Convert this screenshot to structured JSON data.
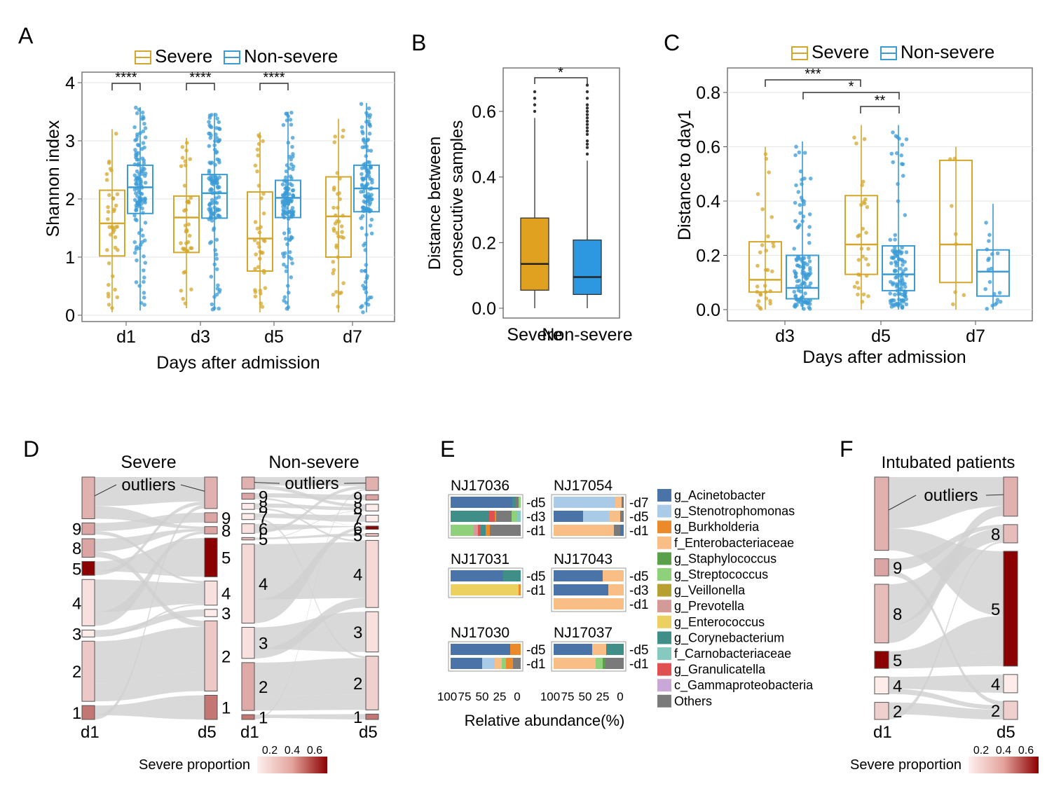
{
  "panels": {
    "A": "A",
    "B": "B",
    "C": "C",
    "D": "D",
    "E": "E",
    "F": "F"
  },
  "colors": {
    "severe": "#d4a72c",
    "nonsevere": "#3a9bd5",
    "severe_fill": "#e0a020",
    "nonsevere_fill": "#2d98e0",
    "grid": "#e6e6e6",
    "flow": "#d3d3d3",
    "scale_low": "#fdeeee",
    "scale_high": "#8b0000"
  },
  "chart_data": [
    {
      "id": "A",
      "type": "box",
      "legend": [
        "Severe",
        "Non-severe"
      ],
      "legend_position": "top",
      "xlabel": "Days after admission",
      "ylabel": "Shannon index",
      "categories": [
        "d1",
        "d3",
        "d5",
        "d7"
      ],
      "ylim": [
        0,
        4
      ],
      "yticks": [
        "0",
        "1",
        "2",
        "3",
        "4"
      ],
      "grid": true,
      "series": [
        {
          "name": "Severe",
          "color": "#d4a72c",
          "boxes": [
            {
              "q1": 1.02,
              "med": 1.58,
              "q3": 2.15,
              "lo": 0.05,
              "hi": 3.2
            },
            {
              "q1": 1.08,
              "med": 1.68,
              "q3": 2.05,
              "lo": 0.12,
              "hi": 3.05
            },
            {
              "q1": 0.76,
              "med": 1.32,
              "q3": 2.12,
              "lo": 0.05,
              "hi": 3.15
            },
            {
              "q1": 1.0,
              "med": 1.7,
              "q3": 2.38,
              "lo": 0.05,
              "hi": 3.38
            }
          ]
        },
        {
          "name": "Non-severe",
          "color": "#3a9bd5",
          "boxes": [
            {
              "q1": 1.75,
              "med": 2.2,
              "q3": 2.58,
              "lo": 0.08,
              "hi": 3.58
            },
            {
              "q1": 1.67,
              "med": 2.1,
              "q3": 2.42,
              "lo": 0.08,
              "hi": 3.48
            },
            {
              "q1": 1.68,
              "med": 2.02,
              "q3": 2.32,
              "lo": 0.08,
              "hi": 3.5
            },
            {
              "q1": 1.78,
              "med": 2.18,
              "q3": 2.58,
              "lo": 0.05,
              "hi": 3.65
            }
          ]
        }
      ],
      "significance": [
        {
          "pair": [
            0,
            0
          ],
          "label": "****"
        },
        {
          "pair": [
            1,
            1
          ],
          "label": "****"
        },
        {
          "pair": [
            2,
            2
          ],
          "label": "****"
        }
      ]
    },
    {
      "id": "B",
      "type": "box",
      "ylabel": "Distance between\nconsecutive samples",
      "categories": [
        "Severe",
        "Non-severe"
      ],
      "ylim": [
        0,
        0.7
      ],
      "yticks": [
        "0.0",
        "0.2",
        "0.4",
        "0.6"
      ],
      "grid": false,
      "boxes": [
        {
          "q1": 0.055,
          "med": 0.135,
          "q3": 0.275,
          "lo": 0.0,
          "hi": 0.58,
          "color": "#e0a020",
          "outliers": [
            0.6,
            0.62,
            0.64,
            0.66
          ]
        },
        {
          "q1": 0.042,
          "med": 0.095,
          "q3": 0.208,
          "lo": 0.0,
          "hi": 0.45,
          "color": "#2d98e0",
          "outliers": [
            0.47,
            0.49,
            0.5,
            0.51,
            0.53,
            0.54,
            0.55,
            0.56,
            0.57,
            0.58,
            0.59,
            0.6,
            0.61,
            0.62,
            0.64,
            0.66,
            0.68
          ]
        }
      ],
      "significance": [
        {
          "pair": [
            0,
            1
          ],
          "label": "*"
        }
      ]
    },
    {
      "id": "C",
      "type": "box",
      "legend": [
        "Severe",
        "Non-severe"
      ],
      "legend_position": "top",
      "xlabel": "Days after admission",
      "ylabel": "Distance to day1",
      "categories": [
        "d3",
        "d5",
        "d7"
      ],
      "ylim": [
        0,
        0.8
      ],
      "yticks": [
        "0.0",
        "0.2",
        "0.4",
        "0.6",
        "0.8"
      ],
      "grid": true,
      "series": [
        {
          "name": "Severe",
          "color": "#d4a72c",
          "boxes": [
            {
              "q1": 0.065,
              "med": 0.11,
              "q3": 0.25,
              "lo": 0.0,
              "hi": 0.6
            },
            {
              "q1": 0.13,
              "med": 0.24,
              "q3": 0.42,
              "lo": 0.0,
              "hi": 0.68
            },
            {
              "q1": 0.1,
              "med": 0.24,
              "q3": 0.55,
              "lo": 0.0,
              "hi": 0.6
            }
          ]
        },
        {
          "name": "Non-severe",
          "color": "#3a9bd5",
          "boxes": [
            {
              "q1": 0.04,
              "med": 0.08,
              "q3": 0.2,
              "lo": 0.0,
              "hi": 0.62
            },
            {
              "q1": 0.07,
              "med": 0.13,
              "q3": 0.235,
              "lo": 0.0,
              "hi": 0.68
            },
            {
              "q1": 0.05,
              "med": 0.14,
              "q3": 0.22,
              "lo": 0.0,
              "hi": 0.39
            }
          ]
        }
      ],
      "significance": [
        {
          "label": "***"
        },
        {
          "label": "*"
        },
        {
          "label": "**"
        }
      ]
    },
    {
      "id": "D",
      "type": "alluvial",
      "panels": [
        {
          "title": "Severe",
          "note": "outliers",
          "left": [
            {
              "label": "",
              "size": 0.18,
              "shade": 0.25
            },
            {
              "label": "9",
              "size": 0.05,
              "shade": 0.3
            },
            {
              "label": "8",
              "size": 0.08,
              "shade": 0.3
            },
            {
              "label": "5",
              "size": 0.06,
              "shade": 1.0
            },
            {
              "label": "4",
              "size": 0.2,
              "shade": 0.05
            },
            {
              "label": "3",
              "size": 0.03,
              "shade": 0.0
            },
            {
              "label": "2",
              "size": 0.26,
              "shade": 0.15
            },
            {
              "label": "1",
              "size": 0.06,
              "shade": 0.5
            }
          ],
          "right": [
            {
              "label": "",
              "size": 0.13,
              "shade": 0.25
            },
            {
              "label": "9",
              "size": 0.04,
              "shade": 0.3
            },
            {
              "label": "8",
              "size": 0.03,
              "shade": 0.3
            },
            {
              "label": "5",
              "size": 0.16,
              "shade": 1.0
            },
            {
              "label": "4",
              "size": 0.1,
              "shade": 0.05
            },
            {
              "label": "3",
              "size": 0.03,
              "shade": 0.0
            },
            {
              "label": "2",
              "size": 0.29,
              "shade": 0.15
            },
            {
              "label": "1",
              "size": 0.1,
              "shade": 0.5
            }
          ],
          "xlabels": [
            "d1",
            "d5"
          ]
        },
        {
          "title": "Non-severe",
          "note": "outliers",
          "left": [
            {
              "label": "",
              "size": 0.05,
              "shade": 0.25
            },
            {
              "label": "9",
              "size": 0.025,
              "shade": 0.3
            },
            {
              "label": "8",
              "size": 0.025,
              "shade": 0.0
            },
            {
              "label": "7",
              "size": 0.025,
              "shade": 0.0
            },
            {
              "label": "6",
              "size": 0.04,
              "shade": 0.05
            },
            {
              "label": "5",
              "size": 0.01,
              "shade": 0.2
            },
            {
              "label": "4",
              "size": 0.33,
              "shade": 0.08
            },
            {
              "label": "3",
              "size": 0.13,
              "shade": 0.05
            },
            {
              "label": "2",
              "size": 0.2,
              "shade": 0.28
            },
            {
              "label": "1",
              "size": 0.02,
              "shade": 0.5
            }
          ],
          "right": [
            {
              "label": "",
              "size": 0.05,
              "shade": 0.25
            },
            {
              "label": "9",
              "size": 0.02,
              "shade": 0.3
            },
            {
              "label": "8",
              "size": 0.025,
              "shade": 0.0
            },
            {
              "label": "7",
              "size": 0.025,
              "shade": 0.0
            },
            {
              "label": "6",
              "size": 0.012,
              "shade": 1.0
            },
            {
              "label": "5",
              "size": 0.01,
              "shade": 0.2
            },
            {
              "label": "4",
              "size": 0.25,
              "shade": 0.08
            },
            {
              "label": "3",
              "size": 0.15,
              "shade": 0.05
            },
            {
              "label": "2",
              "size": 0.2,
              "shade": 0.12
            },
            {
              "label": "1",
              "size": 0.02,
              "shade": 0.5
            }
          ],
          "xlabels": [
            "d1",
            "d5"
          ]
        }
      ],
      "scale_label": "Severe proportion",
      "scale_ticks": [
        "0.2",
        "0.4",
        "0.6"
      ]
    },
    {
      "id": "E",
      "type": "stacked_bar",
      "xlabel": "Relative abundance(%)",
      "xticks": [
        "100",
        "75",
        "50",
        "25",
        "0"
      ],
      "taxa": [
        {
          "name": "g_Acinetobacter",
          "color": "#4a73a8"
        },
        {
          "name": "g_Stenotrophomonas",
          "color": "#a9cbe8"
        },
        {
          "name": "g_Burkholderia",
          "color": "#ea8a2a"
        },
        {
          "name": "f_Enterobacteriaceae",
          "color": "#f9be86"
        },
        {
          "name": "g_Staphylococcus",
          "color": "#5aa04a"
        },
        {
          "name": "g_Streptococcus",
          "color": "#8fd07a"
        },
        {
          "name": "g_Veillonella",
          "color": "#b8a030"
        },
        {
          "name": "g_Prevotella",
          "color": "#d49a98"
        },
        {
          "name": "g_Enterococcus",
          "color": "#ecd060"
        },
        {
          "name": "g_Corynebacterium",
          "color": "#3f8f88"
        },
        {
          "name": "f_Carnobacteriaceae",
          "color": "#86c9bf"
        },
        {
          "name": "g_Granulicatella",
          "color": "#e05050"
        },
        {
          "name": "c_Gammaproteobacteria",
          "color": "#c9a8d8"
        },
        {
          "name": "Others",
          "color": "#7a7a7a"
        }
      ],
      "patients": [
        {
          "id": "NJ17036",
          "samples": [
            {
              "day": "d5",
              "parts": [
                [
                  "g_Acinetobacter",
                  88
                ],
                [
                  "g_Corynebacterium",
                  5
                ],
                [
                  "Others",
                  4
                ],
                [
                  "g_Streptococcus",
                  3
                ]
              ]
            },
            {
              "day": "d3",
              "parts": [
                [
                  "g_Corynebacterium",
                  55
                ],
                [
                  "g_Granulicatella",
                  8
                ],
                [
                  "g_Burkholderia",
                  2
                ],
                [
                  "Others",
                  22
                ],
                [
                  "g_Streptococcus",
                  8
                ],
                [
                  "f_Carnobacteriaceae",
                  5
                ]
              ]
            },
            {
              "day": "d1",
              "parts": [
                [
                  "g_Streptococcus",
                  33
                ],
                [
                  "g_Prevotella",
                  6
                ],
                [
                  "g_Granulicatella",
                  4
                ],
                [
                  "g_Corynebacterium",
                  7
                ],
                [
                  "g_Burkholderia",
                  6
                ],
                [
                  "Others",
                  44
                ]
              ]
            }
          ]
        },
        {
          "id": "NJ17054",
          "samples": [
            {
              "day": "d7",
              "parts": [
                [
                  "g_Stenotrophomonas",
                  88
                ],
                [
                  "f_Enterobacteriaceae",
                  9
                ],
                [
                  "Others",
                  3
                ]
              ]
            },
            {
              "day": "d5",
              "parts": [
                [
                  "g_Acinetobacter",
                  42
                ],
                [
                  "g_Stenotrophomonas",
                  37
                ],
                [
                  "f_Enterobacteriaceae",
                  16
                ],
                [
                  "Others",
                  5
                ]
              ]
            },
            {
              "day": "d1",
              "parts": [
                [
                  "f_Enterobacteriaceae",
                  86
                ],
                [
                  "Others",
                  9
                ],
                [
                  "g_Acinetobacter",
                  5
                ]
              ]
            }
          ]
        },
        {
          "id": "NJ17031",
          "samples": [
            {
              "day": "d5",
              "parts": [
                [
                  "g_Acinetobacter",
                  75
                ],
                [
                  "g_Corynebacterium",
                  25
                ]
              ]
            },
            {
              "day": "d1",
              "parts": [
                [
                  "g_Enterococcus",
                  97
                ],
                [
                  "g_Burkholderia",
                  3
                ]
              ]
            }
          ]
        },
        {
          "id": "NJ17043",
          "samples": [
            {
              "day": "d5",
              "parts": [
                [
                  "g_Acinetobacter",
                  70
                ],
                [
                  "f_Enterobacteriaceae",
                  30
                ]
              ]
            },
            {
              "day": "d3",
              "parts": [
                [
                  "g_Acinetobacter",
                  78
                ],
                [
                  "f_Enterobacteriaceae",
                  22
                ]
              ]
            },
            {
              "day": "d1",
              "parts": [
                [
                  "f_Enterobacteriaceae",
                  100
                ]
              ]
            }
          ]
        },
        {
          "id": "NJ17030",
          "samples": [
            {
              "day": "d5",
              "parts": [
                [
                  "g_Acinetobacter",
                  85
                ],
                [
                  "g_Burkholderia",
                  15
                ]
              ]
            },
            {
              "day": "d1",
              "parts": [
                [
                  "g_Acinetobacter",
                  45
                ],
                [
                  "g_Stenotrophomonas",
                  18
                ],
                [
                  "f_Enterobacteriaceae",
                  10
                ],
                [
                  "g_Streptococcus",
                  6
                ],
                [
                  "g_Burkholderia",
                  10
                ],
                [
                  "Others",
                  11
                ]
              ]
            }
          ]
        },
        {
          "id": "NJ17037",
          "samples": [
            {
              "day": "d5",
              "parts": [
                [
                  "g_Acinetobacter",
                  55
                ],
                [
                  "f_Enterobacteriaceae",
                  20
                ],
                [
                  "g_Corynebacterium",
                  25
                ]
              ]
            },
            {
              "day": "d1",
              "parts": [
                [
                  "f_Enterobacteriaceae",
                  60
                ],
                [
                  "g_Streptococcus",
                  10
                ],
                [
                  "g_Staphylococcus",
                  4
                ],
                [
                  "Others",
                  26
                ]
              ]
            }
          ]
        }
      ]
    },
    {
      "id": "F",
      "type": "alluvial",
      "title": "Intubated patients",
      "note": "outliers",
      "left": [
        {
          "label": "",
          "size": 0.3,
          "shade": 0.25
        },
        {
          "label": "9",
          "size": 0.07,
          "shade": 0.3
        },
        {
          "label": "8",
          "size": 0.24,
          "shade": 0.2
        },
        {
          "label": "5",
          "size": 0.07,
          "shade": 1.0
        },
        {
          "label": "4",
          "size": 0.07,
          "shade": 0.0
        },
        {
          "label": "2",
          "size": 0.07,
          "shade": 0.12
        }
      ],
      "right": [
        {
          "label": "",
          "size": 0.15,
          "shade": 0.25
        },
        {
          "label": "8",
          "size": 0.07,
          "shade": 0.2
        },
        {
          "label": "5",
          "size": 0.44,
          "shade": 1.0
        },
        {
          "label": "4",
          "size": 0.07,
          "shade": 0.0
        },
        {
          "label": "2",
          "size": 0.07,
          "shade": 0.12
        }
      ],
      "xlabels": [
        "d1",
        "d5"
      ],
      "scale_label": "Severe proportion",
      "scale_ticks": [
        "0.2",
        "0.4",
        "0.6"
      ]
    }
  ]
}
